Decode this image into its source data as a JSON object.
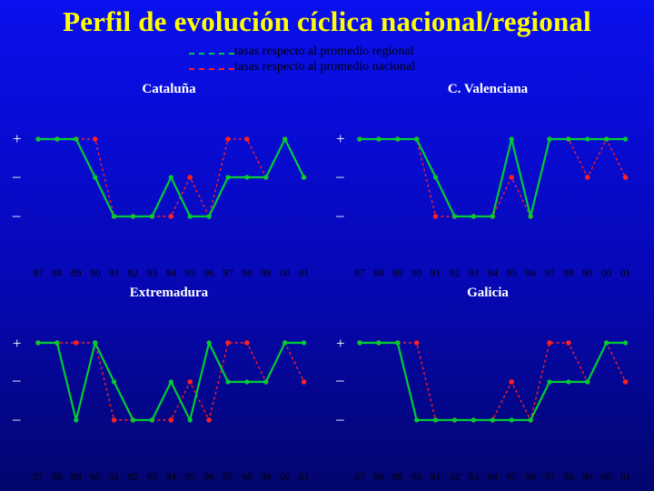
{
  "title": "Perfil de evolución cíclica nacional/regional",
  "colors": {
    "title": "#ffff00",
    "background": "#0708b8",
    "regional": "#00cc33",
    "national": "#ff2020",
    "panel_title": "#ffffff",
    "tick_labels": "#000000"
  },
  "legend": [
    {
      "label": "tasas respecto al promedio regional",
      "color": "#00cc33",
      "style": "dashed"
    },
    {
      "label": "tasas respecto al promedio nacional",
      "color": "#ff2020",
      "style": "dashed"
    }
  ],
  "chart_data": [
    {
      "type": "line",
      "title": "Cataluña",
      "categories": [
        "87",
        "88",
        "89",
        "90",
        "91",
        "92",
        "93",
        "94",
        "95",
        "96",
        "97",
        "98",
        "99",
        "00",
        "01"
      ],
      "y_levels": [
        "+",
        "–",
        "–"
      ],
      "series": [
        {
          "name": "tasas respecto al promedio regional",
          "values": [
            2,
            2,
            2,
            1,
            0,
            0,
            0,
            1,
            0,
            0,
            1,
            1,
            1,
            2,
            1
          ]
        },
        {
          "name": "tasas respecto al promedio nacional",
          "values": [
            2,
            2,
            2,
            2,
            0,
            0,
            0,
            0,
            1,
            0,
            2,
            2,
            1,
            2,
            1
          ]
        }
      ]
    },
    {
      "type": "line",
      "title": "C. Valenciana",
      "categories": [
        "87",
        "88",
        "89",
        "90",
        "91",
        "92",
        "93",
        "94",
        "95",
        "96",
        "97",
        "98",
        "99",
        "00",
        "01"
      ],
      "y_levels": [
        "+",
        "–",
        "–"
      ],
      "series": [
        {
          "name": "tasas respecto al promedio regional",
          "values": [
            2,
            2,
            2,
            2,
            1,
            0,
            0,
            0,
            2,
            0,
            2,
            2,
            2,
            2,
            2
          ]
        },
        {
          "name": "tasas respecto al promedio nacional",
          "values": [
            2,
            2,
            2,
            2,
            0,
            0,
            0,
            0,
            1,
            0,
            2,
            2,
            1,
            2,
            1
          ]
        }
      ]
    },
    {
      "type": "line",
      "title": "Extremadura",
      "categories": [
        "87",
        "88",
        "89",
        "90",
        "91",
        "92",
        "93",
        "94",
        "95",
        "96",
        "97",
        "98",
        "99",
        "00",
        "01"
      ],
      "y_levels": [
        "+",
        "–",
        "–"
      ],
      "series": [
        {
          "name": "tasas respecto al promedio regional",
          "values": [
            2,
            2,
            0,
            2,
            1,
            0,
            0,
            1,
            0,
            2,
            1,
            1,
            1,
            2,
            2
          ]
        },
        {
          "name": "tasas respecto al promedio nacional",
          "values": [
            2,
            2,
            2,
            2,
            0,
            0,
            0,
            0,
            1,
            0,
            2,
            2,
            1,
            2,
            1
          ]
        }
      ]
    },
    {
      "type": "line",
      "title": "Galicia",
      "categories": [
        "87",
        "88",
        "89",
        "90",
        "91",
        "92",
        "93",
        "94",
        "95",
        "96",
        "97",
        "98",
        "99",
        "00",
        "01"
      ],
      "y_levels": [
        "+",
        "–",
        "–"
      ],
      "series": [
        {
          "name": "tasas respecto al promedio regional",
          "values": [
            2,
            2,
            2,
            0,
            0,
            0,
            0,
            0,
            0,
            0,
            1,
            1,
            1,
            2,
            2
          ]
        },
        {
          "name": "tasas respecto al promedio nacional",
          "values": [
            2,
            2,
            2,
            2,
            0,
            0,
            0,
            0,
            1,
            0,
            2,
            2,
            1,
            2,
            1
          ]
        }
      ]
    }
  ]
}
